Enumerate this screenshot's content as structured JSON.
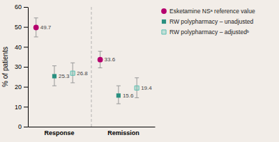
{
  "chart_data": {
    "type": "dot",
    "ylabel": "% of patients",
    "categories": [
      "Response",
      "Remission"
    ],
    "ylim": [
      0,
      60
    ],
    "yticks": [
      0,
      10,
      20,
      30,
      40,
      50,
      60
    ],
    "data_labels": true,
    "legend": "right",
    "series": [
      {
        "name": "Esketamine NSᵃ reference value",
        "color": "#b5006e",
        "marker": "circle",
        "values": [
          49.7,
          33.6
        ],
        "ci_low": [
          45.0,
          29.5
        ],
        "ci_high": [
          54.5,
          37.8
        ]
      },
      {
        "name": "RW polypharmacy – unadjusted",
        "color": "#2a9080",
        "marker": "square",
        "values": [
          25.3,
          15.6
        ],
        "ci_low": [
          20.5,
          11.5
        ],
        "ci_high": [
          30.5,
          20.5
        ]
      },
      {
        "name": "RW polypharmacy – adjustedᵇ",
        "color": "#5bbfb0",
        "marker": "square-open",
        "values": [
          26.8,
          19.4
        ],
        "ci_low": [
          22.0,
          14.5
        ],
        "ci_high": [
          32.0,
          24.5
        ]
      }
    ]
  }
}
